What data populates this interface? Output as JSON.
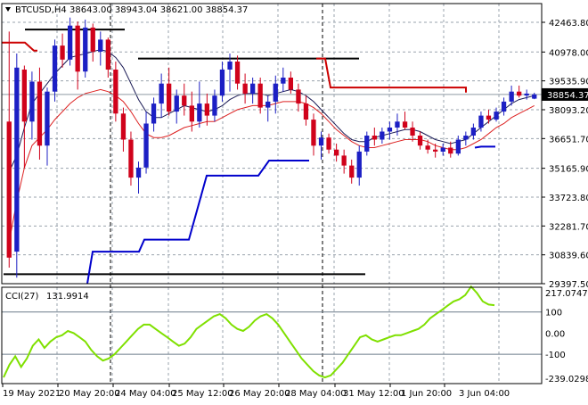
{
  "header": {
    "symbol": "BTCUSD,H4",
    "ohlc": "38643.00 38943.04 38621.00 38854.37"
  },
  "chart_data": [
    {
      "type": "candlestick",
      "title": "BTCUSD,H4",
      "ylim": [
        29397.5,
        43400
      ],
      "price_ticks": [
        "42463.80",
        "40978.00",
        "39535.90",
        "38093.20",
        "36651.70",
        "35165.90",
        "33723.80",
        "32281.70",
        "30839.60",
        "29397.50"
      ],
      "current_price": "38854.37",
      "x_ticks": [
        "19 May 2021",
        "20 May 20:00",
        "24 May 04:00",
        "25 May 12:00",
        "26 May 20:00",
        "28 May 04:00",
        "31 May 12:00",
        "1 Jun 20:00",
        "3 Jun 04:00"
      ],
      "candles": [
        {
          "o": 37500,
          "h": 42000,
          "l": 30200,
          "c": 30700
        },
        {
          "o": 31000,
          "h": 40900,
          "l": 29700,
          "c": 40200
        },
        {
          "o": 40100,
          "h": 40300,
          "l": 35200,
          "c": 37500
        },
        {
          "o": 37500,
          "h": 40000,
          "l": 36600,
          "c": 39500
        },
        {
          "o": 39500,
          "h": 40200,
          "l": 35600,
          "c": 36300
        },
        {
          "o": 36300,
          "h": 39200,
          "l": 35300,
          "c": 39000
        },
        {
          "o": 39000,
          "h": 41600,
          "l": 38500,
          "c": 41300
        },
        {
          "o": 41300,
          "h": 41900,
          "l": 40200,
          "c": 40600
        },
        {
          "o": 40600,
          "h": 42700,
          "l": 40300,
          "c": 42300
        },
        {
          "o": 42300,
          "h": 42500,
          "l": 39100,
          "c": 40000
        },
        {
          "o": 40000,
          "h": 42600,
          "l": 39700,
          "c": 42200
        },
        {
          "o": 42200,
          "h": 42400,
          "l": 40500,
          "c": 41000
        },
        {
          "o": 41000,
          "h": 42000,
          "l": 40300,
          "c": 41600
        },
        {
          "o": 41600,
          "h": 41700,
          "l": 39700,
          "c": 40100
        },
        {
          "o": 40100,
          "h": 40500,
          "l": 37500,
          "c": 37900
        },
        {
          "o": 37900,
          "h": 38200,
          "l": 36000,
          "c": 36600
        },
        {
          "o": 36600,
          "h": 37000,
          "l": 34300,
          "c": 34700
        },
        {
          "o": 34700,
          "h": 35500,
          "l": 33900,
          "c": 35200
        },
        {
          "o": 35200,
          "h": 38000,
          "l": 34900,
          "c": 37400
        },
        {
          "o": 37400,
          "h": 38700,
          "l": 37000,
          "c": 38400
        },
        {
          "o": 38400,
          "h": 39900,
          "l": 37700,
          "c": 39400
        },
        {
          "o": 39400,
          "h": 40200,
          "l": 37800,
          "c": 38000
        },
        {
          "o": 38000,
          "h": 39100,
          "l": 37400,
          "c": 38800
        },
        {
          "o": 38800,
          "h": 39400,
          "l": 37800,
          "c": 38300
        },
        {
          "o": 38300,
          "h": 39000,
          "l": 37000,
          "c": 37500
        },
        {
          "o": 37500,
          "h": 39500,
          "l": 37200,
          "c": 38400
        },
        {
          "o": 38400,
          "h": 38900,
          "l": 37300,
          "c": 37800
        },
        {
          "o": 37800,
          "h": 39100,
          "l": 37500,
          "c": 38800
        },
        {
          "o": 38800,
          "h": 40500,
          "l": 38500,
          "c": 40100
        },
        {
          "o": 40100,
          "h": 40900,
          "l": 39000,
          "c": 40500
        },
        {
          "o": 40500,
          "h": 40800,
          "l": 39100,
          "c": 39400
        },
        {
          "o": 39400,
          "h": 39900,
          "l": 38400,
          "c": 38900
        },
        {
          "o": 38900,
          "h": 39700,
          "l": 38400,
          "c": 39400
        },
        {
          "o": 39400,
          "h": 39700,
          "l": 37900,
          "c": 38200
        },
        {
          "o": 38200,
          "h": 38800,
          "l": 37500,
          "c": 38500
        },
        {
          "o": 38500,
          "h": 39800,
          "l": 37900,
          "c": 39400
        },
        {
          "o": 39400,
          "h": 40200,
          "l": 39000,
          "c": 39700
        },
        {
          "o": 39700,
          "h": 40000,
          "l": 38900,
          "c": 39100
        },
        {
          "o": 39100,
          "h": 39400,
          "l": 38000,
          "c": 38400
        },
        {
          "o": 38400,
          "h": 38800,
          "l": 37300,
          "c": 37600
        },
        {
          "o": 37600,
          "h": 37900,
          "l": 35800,
          "c": 36300
        },
        {
          "o": 36300,
          "h": 37000,
          "l": 35600,
          "c": 36700
        },
        {
          "o": 36700,
          "h": 36900,
          "l": 35900,
          "c": 36100
        },
        {
          "o": 36100,
          "h": 36400,
          "l": 35500,
          "c": 35800
        },
        {
          "o": 35800,
          "h": 36100,
          "l": 34900,
          "c": 35300
        },
        {
          "o": 35300,
          "h": 35600,
          "l": 34400,
          "c": 34700
        },
        {
          "o": 34700,
          "h": 36300,
          "l": 34300,
          "c": 36000
        },
        {
          "o": 36000,
          "h": 37000,
          "l": 35800,
          "c": 36800
        },
        {
          "o": 36800,
          "h": 37200,
          "l": 36300,
          "c": 36600
        },
        {
          "o": 36600,
          "h": 37200,
          "l": 36400,
          "c": 37000
        },
        {
          "o": 37000,
          "h": 37500,
          "l": 36600,
          "c": 37200
        },
        {
          "o": 37200,
          "h": 37900,
          "l": 36800,
          "c": 37500
        },
        {
          "o": 37500,
          "h": 38000,
          "l": 37100,
          "c": 37200
        },
        {
          "o": 37200,
          "h": 37500,
          "l": 36500,
          "c": 36800
        },
        {
          "o": 36800,
          "h": 37000,
          "l": 36100,
          "c": 36300
        },
        {
          "o": 36300,
          "h": 36600,
          "l": 35900,
          "c": 36100
        },
        {
          "o": 36100,
          "h": 36400,
          "l": 35700,
          "c": 36000
        },
        {
          "o": 36000,
          "h": 36400,
          "l": 35800,
          "c": 36200
        },
        {
          "o": 36200,
          "h": 36500,
          "l": 35700,
          "c": 35900
        },
        {
          "o": 35900,
          "h": 36800,
          "l": 35800,
          "c": 36600
        },
        {
          "o": 36600,
          "h": 37000,
          "l": 36300,
          "c": 36800
        },
        {
          "o": 36800,
          "h": 37400,
          "l": 36600,
          "c": 37200
        },
        {
          "o": 37200,
          "h": 38000,
          "l": 37000,
          "c": 37800
        },
        {
          "o": 37800,
          "h": 38100,
          "l": 37400,
          "c": 37600
        },
        {
          "o": 37600,
          "h": 38200,
          "l": 37500,
          "c": 38000
        },
        {
          "o": 38000,
          "h": 38700,
          "l": 37800,
          "c": 38500
        },
        {
          "o": 38500,
          "h": 39300,
          "l": 38300,
          "c": 39000
        },
        {
          "o": 39000,
          "h": 39300,
          "l": 38700,
          "c": 38800
        },
        {
          "o": 38800,
          "h": 39100,
          "l": 38600,
          "c": 38900
        },
        {
          "o": 38643,
          "h": 38943.04,
          "l": 38621,
          "c": 38854.37
        }
      ],
      "ma_black": [
        35000,
        35800,
        37200,
        38400,
        38900,
        39400,
        39900,
        40300,
        40700,
        40800,
        40900,
        41000,
        41100,
        41000,
        40700,
        40200,
        39400,
        38600,
        38000,
        37700,
        37700,
        37900,
        38100,
        38300,
        38200,
        38100,
        38000,
        38100,
        38300,
        38600,
        38800,
        38900,
        38900,
        38900,
        38800,
        38900,
        39000,
        39100,
        39000,
        38800,
        38500,
        38100,
        37700,
        37300,
        36900,
        36600,
        36500,
        36500,
        36700,
        36800,
        36900,
        37000,
        37100,
        37100,
        37000,
        36800,
        36600,
        36500,
        36400,
        36500,
        36600,
        36900,
        37200,
        37500,
        37800,
        38100,
        38400,
        38600,
        38700,
        38800
      ],
      "ma_red": [
        31500,
        33500,
        35200,
        36300,
        36700,
        37100,
        37600,
        38000,
        38400,
        38700,
        38900,
        39000,
        39100,
        39000,
        38800,
        38500,
        38000,
        37400,
        36900,
        36700,
        36700,
        36800,
        37000,
        37200,
        37300,
        37400,
        37500,
        37500,
        37700,
        37900,
        38100,
        38200,
        38300,
        38300,
        38300,
        38400,
        38500,
        38500,
        38500,
        38400,
        38200,
        37900,
        37500,
        37100,
        36800,
        36500,
        36300,
        36200,
        36200,
        36300,
        36400,
        36500,
        36600,
        36600,
        36600,
        36500,
        36300,
        36200,
        36100,
        36100,
        36200,
        36400,
        36600,
        36900,
        37200,
        37400,
        37700,
        37900,
        38100,
        38300
      ],
      "cci_ylim": [
        -239.0298,
        217.0747
      ],
      "cci_ticks": [
        "217.0747",
        "100",
        "0.00",
        "-100",
        "-239.0298"
      ],
      "cci_value": "131.9914",
      "cci_label": "CCI(27)",
      "cci": [
        -210,
        -150,
        -110,
        -160,
        -120,
        -60,
        -30,
        -70,
        -40,
        -20,
        -10,
        10,
        0,
        -20,
        -40,
        -80,
        -110,
        -130,
        -120,
        -100,
        -70,
        -40,
        -10,
        20,
        40,
        40,
        20,
        0,
        -20,
        -40,
        -60,
        -50,
        -20,
        20,
        40,
        60,
        80,
        90,
        70,
        40,
        20,
        10,
        30,
        60,
        80,
        90,
        70,
        40,
        0,
        -40,
        -80,
        -120,
        -150,
        -180,
        -200,
        -210,
        -200,
        -170,
        -140,
        -100,
        -60,
        -20,
        -10,
        -30,
        -40,
        -30,
        -20,
        -10,
        -10,
        0,
        10,
        20,
        40,
        70,
        90,
        110,
        130,
        150,
        160,
        180,
        220,
        190,
        150,
        135,
        132
      ]
    }
  ]
}
